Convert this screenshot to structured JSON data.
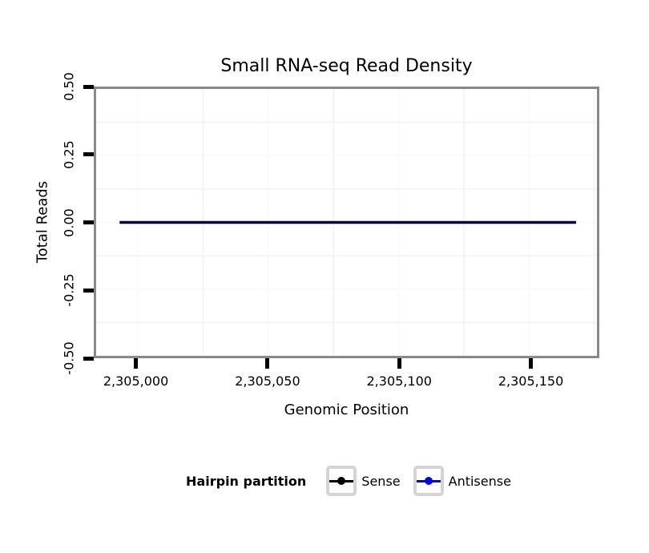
{
  "chart_data": {
    "type": "line",
    "title": "Small RNA-seq Read Density",
    "xlabel": "Genomic Position",
    "ylabel": "Total Reads",
    "xlim": [
      2304984,
      2305176
    ],
    "ylim": [
      -0.5,
      0.5
    ],
    "grid": true,
    "x_ticks": [
      {
        "value": 2305000,
        "label": "2,305,000"
      },
      {
        "value": 2305050,
        "label": "2,305,050"
      },
      {
        "value": 2305100,
        "label": "2,305,100"
      },
      {
        "value": 2305150,
        "label": "2,305,150"
      }
    ],
    "y_ticks": [
      {
        "value": 0.5,
        "label": "0.50"
      },
      {
        "value": 0.25,
        "label": "0.25"
      },
      {
        "value": 0,
        "label": "0.00"
      },
      {
        "value": -0.25,
        "label": "-0.25"
      },
      {
        "value": -0.5,
        "label": "-0.50"
      }
    ],
    "x_minor_gridlines": [
      2305025,
      2305075,
      2305125,
      2305175
    ],
    "y_minor_gridlines": [
      0.375,
      0.125,
      -0.125,
      -0.375
    ],
    "series": [
      {
        "name": "Sense",
        "color": "#000000",
        "x": [
          2304993,
          2305168
        ],
        "y": [
          0,
          0
        ]
      },
      {
        "name": "Antisense",
        "color": "#0000EE",
        "x": [
          2304993,
          2305168
        ],
        "y": [
          0,
          0
        ]
      }
    ],
    "legend": {
      "title": "Hairpin partition",
      "position": "bottom",
      "entries": [
        {
          "label": "Sense",
          "color": "#000000"
        },
        {
          "label": "Antisense",
          "color": "#0000EE"
        }
      ]
    },
    "colors": {
      "panel_border": "#898989",
      "tick": "#000000",
      "minor_gridline": "#f4f4f4",
      "major_gridline": "#fafafa",
      "legend_key_border": "#d4d4d4"
    }
  }
}
